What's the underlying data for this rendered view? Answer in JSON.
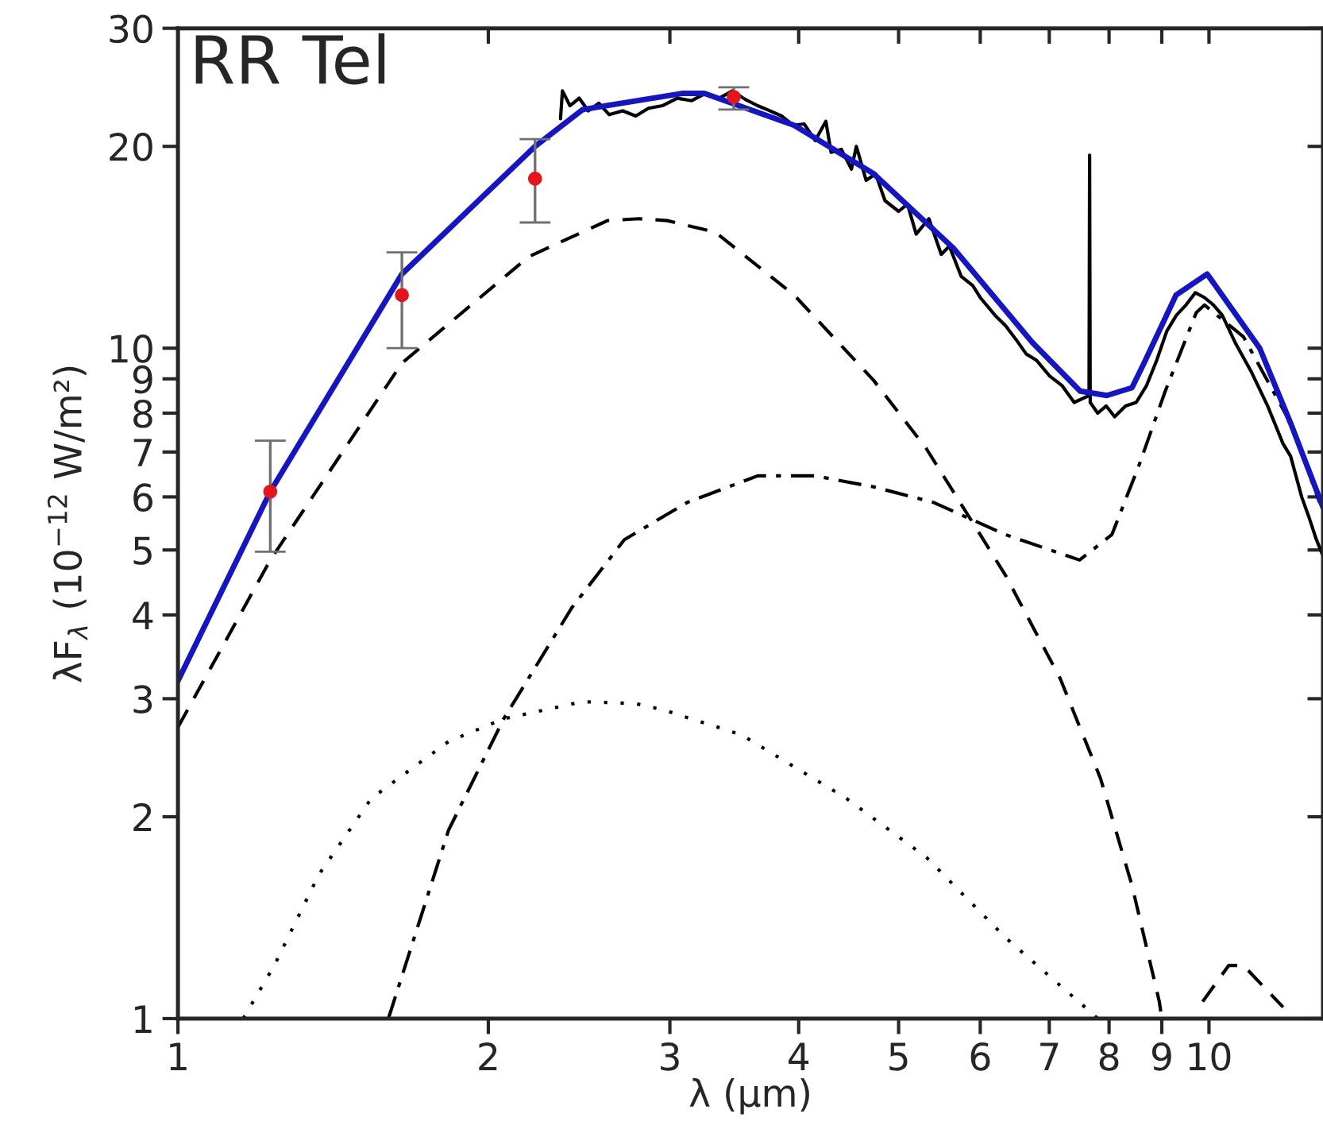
{
  "chart_data": {
    "type": "line",
    "log": "xy",
    "grid": false,
    "legend": false,
    "xlabel": "λ (μm)",
    "ylabel": "λF$_{λ}$ (10$^{−12}$ W/m²)",
    "annotations": [
      "RR Tel"
    ],
    "xlim": [
      1,
      12.9
    ],
    "ylim": [
      1,
      30
    ],
    "xticks": [
      1,
      2,
      3,
      4,
      5,
      6,
      7,
      8,
      9,
      10
    ],
    "yticks": [
      1,
      2,
      3,
      4,
      5,
      6,
      7,
      8,
      9,
      10,
      20,
      30
    ],
    "series": [
      {
        "type": "line",
        "line_style": "solid",
        "color": "#000000",
        "x": [
          2.35,
          2.36,
          2.4,
          2.45,
          2.5,
          2.56,
          2.62,
          2.7,
          2.78,
          2.86,
          2.95,
          3.05,
          3.15,
          3.25,
          3.35,
          3.45,
          3.55,
          3.65,
          3.75,
          3.85,
          3.95,
          4.05,
          4.15,
          4.25,
          4.3,
          4.4,
          4.5,
          4.55,
          4.65,
          4.75,
          4.85,
          5.0,
          5.1,
          5.2,
          5.35,
          5.5,
          5.6,
          5.75,
          5.9,
          6.0,
          6.2,
          6.35,
          6.5,
          6.65,
          6.8,
          7.0,
          7.2,
          7.4,
          7.65,
          7.66,
          7.67,
          7.8,
          7.95,
          8.1,
          8.3,
          8.5,
          8.7,
          8.9,
          9.1,
          9.3,
          9.5,
          9.7,
          9.9,
          10.1,
          10.3,
          10.6,
          11.0,
          11.4,
          11.8,
          12.0,
          12.3,
          12.5,
          12.7,
          12.9
        ],
        "values": [
          22.0,
          24.2,
          23.0,
          23.6,
          22.6,
          23.2,
          22.3,
          22.6,
          22.2,
          22.8,
          23.0,
          23.6,
          23.4,
          24.0,
          23.6,
          24.2,
          23.5,
          23.0,
          22.6,
          22.2,
          21.5,
          21.6,
          20.4,
          21.8,
          19.6,
          19.8,
          18.5,
          20.0,
          17.8,
          18.2,
          16.6,
          16.0,
          16.4,
          14.8,
          15.6,
          13.8,
          14.2,
          12.8,
          12.4,
          11.9,
          11.2,
          10.8,
          10.3,
          9.8,
          9.6,
          9.1,
          8.8,
          8.3,
          8.5,
          19.4,
          8.3,
          8.0,
          8.2,
          7.9,
          8.2,
          8.3,
          8.8,
          9.6,
          10.6,
          11.2,
          11.6,
          12.1,
          11.9,
          11.6,
          11.2,
          10.2,
          9.2,
          8.2,
          7.2,
          6.9,
          6.0,
          5.6,
          5.2,
          4.9
        ]
      },
      {
        "type": "line",
        "line_style": "dashed",
        "color": "#000000",
        "x": [
          1,
          1.229,
          1.649,
          2.19,
          2.61,
          2.8,
          2.98,
          3.32,
          3.96,
          4.73,
          5.32,
          6.0,
          6.35,
          7.17,
          7.85,
          8.42,
          8.95,
          9.0,
          9.4,
          9.86,
          10.45,
          10.8,
          11.8
        ],
        "values": [
          2.72,
          4.83,
          9.5,
          13.7,
          15.5,
          15.6,
          15.5,
          14.9,
          12.0,
          8.95,
          7.08,
          5.27,
          4.58,
          3.22,
          2.28,
          1.58,
          1.06,
          1.0,
          null,
          1.06,
          1.2,
          1.2,
          1.04
        ]
      },
      {
        "type": "line",
        "line_style": "dashdot",
        "color": "#000000",
        "x": [
          1.6,
          1.83,
          2.07,
          2.41,
          2.71,
          3.12,
          3.65,
          4.15,
          4.73,
          5.4,
          6.35,
          7.49,
          8.05,
          8.56,
          9.07,
          9.72,
          9.9,
          10.8,
          12.0,
          12.8
        ],
        "values": [
          1.0,
          1.91,
          2.8,
          4.1,
          5.18,
          5.89,
          6.45,
          6.45,
          6.21,
          5.89,
          5.27,
          4.83,
          5.27,
          6.71,
          8.63,
          11.3,
          11.6,
          10.4,
          7.73,
          5.89
        ]
      },
      {
        "type": "line",
        "line_style": "dotted",
        "color": "#000000",
        "x": [
          1.157,
          1.24,
          1.37,
          1.54,
          1.83,
          2.07,
          2.47,
          2.78,
          2.95,
          3.52,
          4.45,
          5.32,
          6.35,
          7.58,
          7.8
        ],
        "values": [
          1.0,
          1.2,
          1.64,
          2.13,
          2.59,
          2.8,
          2.97,
          2.95,
          2.89,
          2.65,
          2.13,
          1.74,
          1.32,
          1.04,
          1.0
        ]
      },
      {
        "type": "line",
        "line_style": "solid",
        "color": "#1414c8",
        "x": [
          1,
          1.229,
          1.649,
          2.22,
          2.47,
          3.09,
          3.24,
          3.96,
          4.73,
          5.65,
          6.74,
          7.5,
          7.96,
          8.42,
          8.65,
          9.29,
          9.96,
          11.2,
          12.0,
          12.9
        ],
        "values": [
          3.19,
          6.11,
          12.9,
          20.0,
          22.7,
          24.0,
          24.0,
          21.5,
          18.2,
          14.1,
          10.2,
          8.63,
          8.5,
          8.73,
          9.5,
          12.0,
          12.9,
          10.0,
          7.73,
          5.79
        ]
      },
      {
        "type": "scatter",
        "marker": "circle",
        "color": "#e8141c",
        "x": [
          1.229,
          1.649,
          2.22,
          3.46
        ],
        "values": [
          6.11,
          12.0,
          17.9,
          23.7
        ],
        "errors": [
          [
            4.97,
            7.28
          ],
          [
            10.0,
            13.9
          ],
          [
            15.4,
            20.5
          ],
          [
            22.7,
            24.5
          ]
        ]
      }
    ]
  }
}
